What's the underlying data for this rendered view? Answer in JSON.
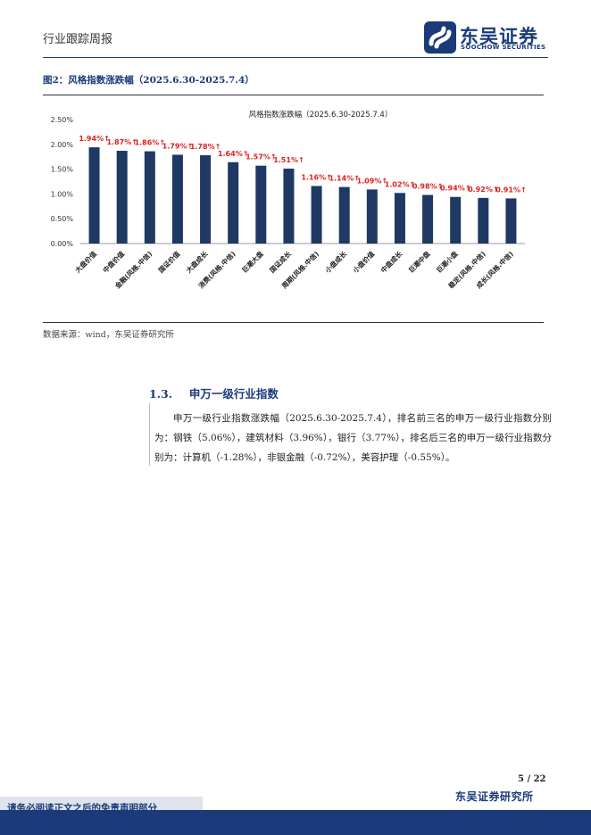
{
  "header": {
    "title": "行业跟踪周报",
    "logo_cn": "东吴证券",
    "logo_en": "SOOCHOW SECURITIES",
    "brand_color": "#1a3a7a"
  },
  "figure": {
    "caption": "图2：风格指数涨跌幅（2025.6.30-2025.7.4）",
    "source": "数据来源：wind，东吴证券研究所"
  },
  "chart_data": {
    "type": "bar",
    "title": "风格指数涨跌幅（2025.6.30-2025.7.4）",
    "categories": [
      "大盘价值",
      "中盘价值",
      "金融(风格.中信)",
      "国证价值",
      "大盘成长",
      "消费(风格.中信)",
      "巨潮大盘",
      "国证成长",
      "周期(风格.中信)",
      "小盘成长",
      "小盘价值",
      "中盘成长",
      "巨潮中盘",
      "巨潮小盘",
      "稳定(风格.中信)",
      "成长(风格.中信)"
    ],
    "values": [
      1.94,
      1.87,
      1.86,
      1.79,
      1.78,
      1.64,
      1.57,
      1.51,
      1.16,
      1.14,
      1.09,
      1.02,
      0.98,
      0.94,
      0.92,
      0.91
    ],
    "data_labels": [
      "1.94%↑",
      "1.87%↑",
      "1.86%↑",
      "1.79%↑",
      "1.78%↑",
      "1.64%↑",
      "1.57%↑",
      "1.51%↑",
      "1.16%↑",
      "1.14%↑",
      "1.09%↑",
      "1.02%↑",
      "0.98%↑",
      "0.94%↑",
      "0.92%↑",
      "0.91%↑"
    ],
    "y_ticks": [
      "0.00%",
      "0.50%",
      "1.00%",
      "1.50%",
      "2.00%",
      "2.50%"
    ],
    "ylim": [
      0,
      2.5
    ],
    "bar_color": "#1f3864",
    "label_color": "#e02020",
    "grid": false,
    "legend": "none"
  },
  "section": {
    "number": "1.3.",
    "title": "申万一级行业指数",
    "paragraph": "申万一级行业指数涨跌幅（2025.6.30-2025.7.4），排名前三名的申万一级行业指数分别为：钢铁（5.06%），建筑材料（3.96%），银行（3.77%），排名后三名的申万一级行业指数分别为：计算机（-1.28%），非银金融（-0.72%），美容护理（-0.55%）。"
  },
  "footer": {
    "page": "5 / 22",
    "disclaimer": "请务必阅读正文之后的免责声明部分",
    "org": "东吴证券研究所"
  }
}
